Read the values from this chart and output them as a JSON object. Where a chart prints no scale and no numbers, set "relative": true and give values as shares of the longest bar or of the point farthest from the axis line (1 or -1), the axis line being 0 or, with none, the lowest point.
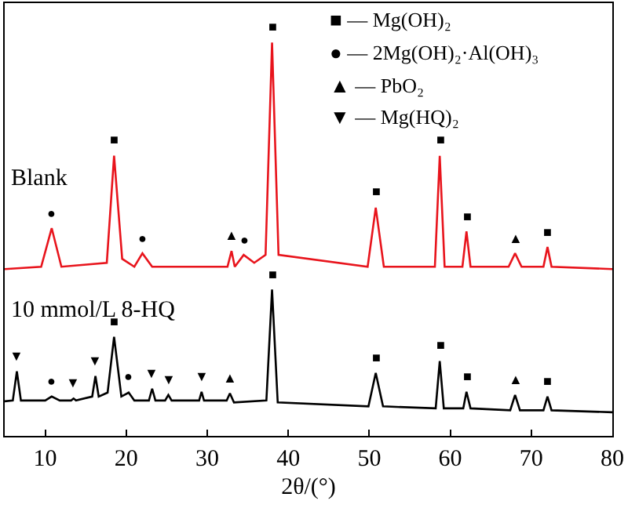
{
  "chart_data": {
    "type": "line",
    "relative": true,
    "xlabel": "2θ/(°)",
    "xlim": [
      5,
      80
    ],
    "xticks": [
      10,
      20,
      30,
      40,
      50,
      60,
      70,
      80
    ],
    "tick_labels": "x",
    "grid": false,
    "legend": false,
    "marker": "none",
    "line_style": "solid",
    "series": [
      {
        "name": "Blank",
        "color": "#e8141c",
        "x": [
          5,
          9.5,
          10.8,
          12,
          17.6,
          18.5,
          19.5,
          21,
          22,
          23.2,
          32.5,
          33,
          33.4,
          34.5,
          35.8,
          37.2,
          38,
          38.8,
          49.8,
          50.8,
          51.8,
          58.1,
          58.7,
          59.3,
          61.5,
          62,
          62.5,
          67.2,
          68,
          68.8,
          71.5,
          72,
          72.5,
          80
        ],
        "values": [
          0.424,
          0.43,
          0.528,
          0.43,
          0.44,
          0.712,
          0.45,
          0.43,
          0.464,
          0.43,
          0.43,
          0.47,
          0.43,
          0.46,
          0.44,
          0.46,
          1.0,
          0.46,
          0.43,
          0.58,
          0.43,
          0.43,
          0.712,
          0.43,
          0.43,
          0.52,
          0.43,
          0.43,
          0.464,
          0.43,
          0.43,
          0.48,
          0.43,
          0.424
        ]
      },
      {
        "name": "10 mmol/L 8-HQ",
        "color": "#000000",
        "x": [
          5,
          6,
          6.5,
          7,
          10,
          10.8,
          11.8,
          13.2,
          13.5,
          13.8,
          15.8,
          16.2,
          16.6,
          17.7,
          18.5,
          19.4,
          20.3,
          21,
          22.8,
          23.2,
          23.6,
          24.8,
          25.2,
          25.6,
          29,
          29.3,
          29.6,
          32.4,
          32.8,
          33.3,
          37.3,
          38,
          38.7,
          49.9,
          50.8,
          51.7,
          58.2,
          58.7,
          59.2,
          61.6,
          62,
          62.5,
          67.4,
          68,
          68.6,
          71.5,
          72,
          72.5,
          80
        ],
        "values": [
          0.088,
          0.09,
          0.164,
          0.09,
          0.09,
          0.1,
          0.09,
          0.09,
          0.095,
          0.09,
          0.1,
          0.152,
          0.1,
          0.11,
          0.252,
          0.1,
          0.11,
          0.09,
          0.09,
          0.12,
          0.09,
          0.09,
          0.104,
          0.09,
          0.09,
          0.112,
          0.09,
          0.09,
          0.108,
          0.085,
          0.09,
          0.372,
          0.085,
          0.075,
          0.16,
          0.075,
          0.07,
          0.19,
          0.07,
          0.07,
          0.112,
          0.07,
          0.065,
          0.104,
          0.065,
          0.065,
          0.1,
          0.065,
          0.06
        ]
      }
    ],
    "annotations": [
      "■ — Mg(OH)₂",
      "● — 2Mg(OH)₂·Al(OH)₃",
      "▲ — PbO₂",
      "▼ — Mg(HQ)₂",
      {
        "text": "●",
        "x": 10.8,
        "y": 0.528
      },
      {
        "text": "■",
        "x": 18.5,
        "y": 0.712
      },
      {
        "text": "●",
        "x": 22,
        "y": 0.464
      },
      {
        "text": "▲",
        "x": 33,
        "y": 0.47
      },
      {
        "text": "●",
        "x": 34.5,
        "y": 0.46
      },
      {
        "text": "■",
        "x": 38,
        "y": 1.0
      },
      {
        "text": "■",
        "x": 50.8,
        "y": 0.58
      },
      {
        "text": "■",
        "x": 58.7,
        "y": 0.712
      },
      {
        "text": "■",
        "x": 62,
        "y": 0.52
      },
      {
        "text": "▲",
        "x": 68,
        "y": 0.464
      },
      {
        "text": "■",
        "x": 72,
        "y": 0.48
      },
      {
        "text": "▼",
        "x": 6.5,
        "y": 0.164
      },
      {
        "text": "●",
        "x": 10.8,
        "y": 0.1
      },
      {
        "text": "▼",
        "x": 13.5,
        "y": 0.095
      },
      {
        "text": "▼",
        "x": 16.2,
        "y": 0.152
      },
      {
        "text": "■",
        "x": 18.5,
        "y": 0.252
      },
      {
        "text": "●",
        "x": 20.3,
        "y": 0.11
      },
      {
        "text": "▼",
        "x": 23.2,
        "y": 0.12
      },
      {
        "text": "▼",
        "x": 25.2,
        "y": 0.104
      },
      {
        "text": "▼",
        "x": 29.3,
        "y": 0.112
      },
      {
        "text": "▲",
        "x": 32.8,
        "y": 0.108
      },
      {
        "text": "■",
        "x": 38,
        "y": 0.372
      },
      {
        "text": "■",
        "x": 50.8,
        "y": 0.16
      },
      {
        "text": "■",
        "x": 58.7,
        "y": 0.19
      },
      {
        "text": "■",
        "x": 62,
        "y": 0.112
      },
      {
        "text": "▲",
        "x": 68,
        "y": 0.104
      },
      {
        "text": "■",
        "x": 72,
        "y": 0.1
      }
    ]
  }
}
